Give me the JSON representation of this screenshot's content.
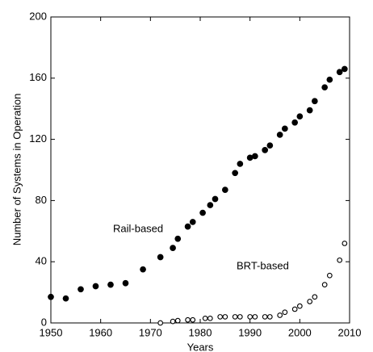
{
  "chart_data": {
    "type": "scatter",
    "xlabel": "Years",
    "ylabel": "Number of Systems in Operation",
    "xlim": [
      1950,
      2010
    ],
    "xticks": [
      1950,
      1960,
      1970,
      1980,
      1990,
      2000,
      2010
    ],
    "ylim": [
      0,
      200
    ],
    "yticks": [
      0,
      40,
      80,
      120,
      160,
      200
    ],
    "series": [
      {
        "name": "Rail-based",
        "color": "#000000",
        "filled": true,
        "x": [
          1950,
          1953,
          1956,
          1959,
          1962,
          1965,
          1968.5,
          1972,
          1974.5,
          1975.5,
          1977.5,
          1978.5,
          1980.5,
          1982,
          1983,
          1985,
          1987,
          1988,
          1990,
          1991,
          1993,
          1994,
          1996,
          1997,
          1999,
          2000,
          2002,
          2003,
          2005,
          2006,
          2008,
          2009
        ],
        "values": [
          17,
          16,
          22,
          24,
          25,
          26,
          35,
          43,
          49,
          55,
          63,
          66,
          72,
          77,
          81,
          87,
          98,
          104,
          108,
          109,
          113,
          116,
          123,
          127,
          131,
          135,
          139,
          145,
          154,
          159,
          164,
          166
        ]
      },
      {
        "name": "BRT-based",
        "color": "#000000",
        "filled": false,
        "x": [
          1972,
          1974.5,
          1975.5,
          1977.5,
          1978.5,
          1981,
          1982,
          1984,
          1985,
          1987,
          1988,
          1990,
          1991,
          1993,
          1994,
          1996,
          1997,
          1999,
          2000,
          2002,
          2003,
          2005,
          2006,
          2008,
          2009
        ],
        "values": [
          0,
          1,
          1.5,
          2,
          2,
          3,
          3,
          4,
          4,
          4,
          4,
          4,
          4,
          4,
          4,
          5,
          7,
          9,
          11,
          14,
          17,
          25,
          31,
          41,
          52
        ]
      }
    ]
  }
}
